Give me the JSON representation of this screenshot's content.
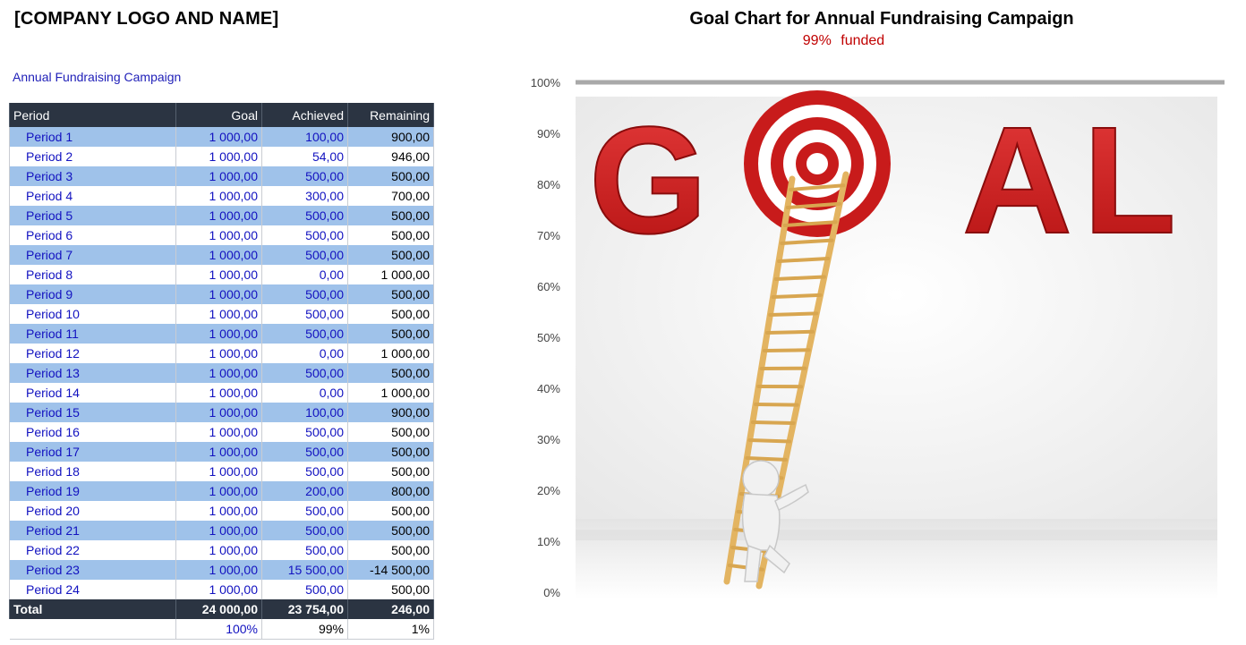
{
  "header": {
    "company": "[COMPANY LOGO AND NAME]",
    "subtitle": "Annual Fundraising Campaign"
  },
  "table": {
    "columns": [
      "Period",
      "Goal",
      "Achieved",
      "Remaining"
    ],
    "rows": [
      {
        "period": "Period 1",
        "goal": "1 000,00",
        "achieved": "100,00",
        "remaining": "900,00"
      },
      {
        "period": "Period 2",
        "goal": "1 000,00",
        "achieved": "54,00",
        "remaining": "946,00"
      },
      {
        "period": "Period 3",
        "goal": "1 000,00",
        "achieved": "500,00",
        "remaining": "500,00"
      },
      {
        "period": "Period 4",
        "goal": "1 000,00",
        "achieved": "300,00",
        "remaining": "700,00"
      },
      {
        "period": "Period 5",
        "goal": "1 000,00",
        "achieved": "500,00",
        "remaining": "500,00"
      },
      {
        "period": "Period 6",
        "goal": "1 000,00",
        "achieved": "500,00",
        "remaining": "500,00"
      },
      {
        "period": "Period 7",
        "goal": "1 000,00",
        "achieved": "500,00",
        "remaining": "500,00"
      },
      {
        "period": "Period 8",
        "goal": "1 000,00",
        "achieved": "0,00",
        "remaining": "1 000,00"
      },
      {
        "period": "Period 9",
        "goal": "1 000,00",
        "achieved": "500,00",
        "remaining": "500,00"
      },
      {
        "period": "Period 10",
        "goal": "1 000,00",
        "achieved": "500,00",
        "remaining": "500,00"
      },
      {
        "period": "Period 11",
        "goal": "1 000,00",
        "achieved": "500,00",
        "remaining": "500,00"
      },
      {
        "period": "Period 12",
        "goal": "1 000,00",
        "achieved": "0,00",
        "remaining": "1 000,00"
      },
      {
        "period": "Period 13",
        "goal": "1 000,00",
        "achieved": "500,00",
        "remaining": "500,00"
      },
      {
        "period": "Period 14",
        "goal": "1 000,00",
        "achieved": "0,00",
        "remaining": "1 000,00"
      },
      {
        "period": "Period 15",
        "goal": "1 000,00",
        "achieved": "100,00",
        "remaining": "900,00"
      },
      {
        "period": "Period 16",
        "goal": "1 000,00",
        "achieved": "500,00",
        "remaining": "500,00"
      },
      {
        "period": "Period 17",
        "goal": "1 000,00",
        "achieved": "500,00",
        "remaining": "500,00"
      },
      {
        "period": "Period 18",
        "goal": "1 000,00",
        "achieved": "500,00",
        "remaining": "500,00"
      },
      {
        "period": "Period 19",
        "goal": "1 000,00",
        "achieved": "200,00",
        "remaining": "800,00"
      },
      {
        "period": "Period 20",
        "goal": "1 000,00",
        "achieved": "500,00",
        "remaining": "500,00"
      },
      {
        "period": "Period 21",
        "goal": "1 000,00",
        "achieved": "500,00",
        "remaining": "500,00"
      },
      {
        "period": "Period 22",
        "goal": "1 000,00",
        "achieved": "500,00",
        "remaining": "500,00"
      },
      {
        "period": "Period 23",
        "goal": "1 000,00",
        "achieved": "15 500,00",
        "remaining": "-14 500,00"
      },
      {
        "period": "Period 24",
        "goal": "1 000,00",
        "achieved": "500,00",
        "remaining": "500,00"
      }
    ],
    "total": {
      "label": "Total",
      "goal": "24 000,00",
      "achieved": "23 754,00",
      "remaining": "246,00"
    },
    "percent": {
      "goal": "100%",
      "achieved": "99%",
      "remaining": "1%"
    }
  },
  "chart": {
    "title": "Goal Chart for Annual Fundraising Campaign",
    "funded_value": "99%",
    "funded_label": "funded",
    "image_word": "GOAL",
    "colors": {
      "goal_red": "#d11e1e",
      "header_dark": "#2b3442",
      "row_blue": "#9fc2ea",
      "ladder": "#e3b461"
    }
  },
  "chart_data": {
    "type": "bar",
    "title": "Goal Chart for Annual Fundraising Campaign",
    "yticks": [
      "0%",
      "10%",
      "20%",
      "30%",
      "40%",
      "50%",
      "60%",
      "70%",
      "80%",
      "90%",
      "100%"
    ],
    "ylim": [
      0,
      1
    ],
    "goal_line": 1.0,
    "funded": 0.99
  }
}
